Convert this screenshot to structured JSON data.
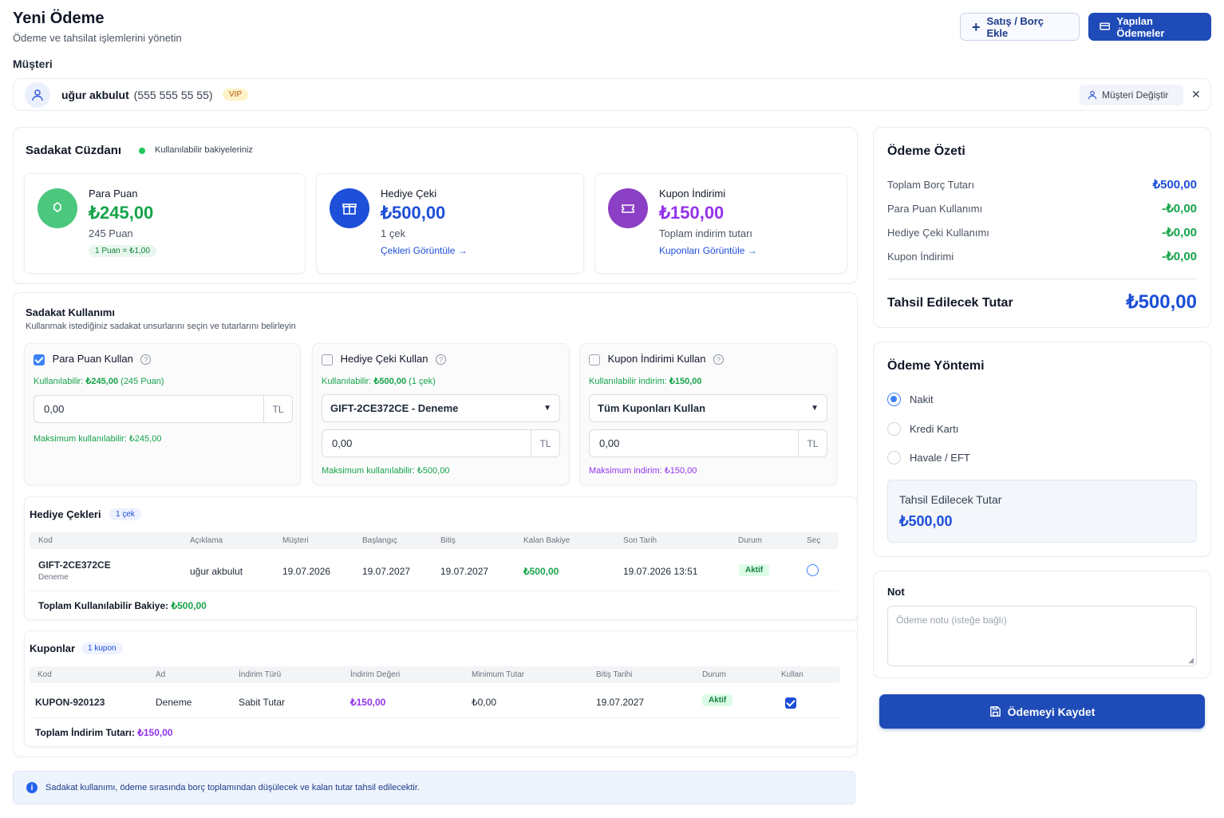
{
  "header": {
    "title": "Yeni Ödeme",
    "subtitle": "Ödeme ve tahsilat işlemlerini yönetin",
    "add_sale_label": "Satış / Borç Ekle",
    "payments_label": "Yapılan Ödemeler"
  },
  "customer": {
    "section_label": "Müşteri",
    "name": "uğur akbulut",
    "phone": "(555 555 55 55)",
    "badge": "VIP",
    "change_label": "Müşteri Değiştir",
    "clear_symbol": "✕"
  },
  "wallet": {
    "title": "Sadakat Cüzdanı",
    "status": "Kullanılabilir bakiyeleriniz",
    "cards": {
      "points": {
        "label": "Para Puan",
        "amount": "₺245,00",
        "sub": "245 Puan",
        "rate": "1 Puan = ₺1,00"
      },
      "gift": {
        "label": "Hediye Çeki",
        "amount": "₺500,00",
        "sub": "1 çek",
        "link": "Çekleri Görüntüle →"
      },
      "coupon": {
        "label": "Kupon İndirimi",
        "amount": "₺150,00",
        "sub": "Toplam indirim tutarı",
        "link": "Kuponları Görüntüle →"
      }
    }
  },
  "usage": {
    "title": "Sadakat Kullanımı",
    "subtitle": "Kullanmak istediğiniz sadakat unsurlarını seçin ve tutarlarını belirleyin",
    "points": {
      "checkbox_label": "Para Puan Kullan",
      "available_prefix": "Kullanılabilir:",
      "available_value": "₺245,00",
      "available_extra": "(245 Puan)",
      "input_value": "0,00",
      "unit": "TL",
      "max_text": "Maksimum kullanılabilir: ₺245,00"
    },
    "gift": {
      "checkbox_label": "Hediye Çeki Kullan",
      "available_prefix": "Kullanılabilir:",
      "available_value": "₺500,00",
      "available_extra": "(1 çek)",
      "select_value": "GIFT-2CE372CE - Deneme",
      "input_value": "0,00",
      "unit": "TL",
      "max_text": "Maksimum kullanılabilir: ₺500,00"
    },
    "coupon": {
      "checkbox_label": "Kupon İndirimi Kullan",
      "available_prefix": "Kullanılabilir indirim:",
      "available_value": "₺150,00",
      "select_value": "Tüm Kuponları Kullan",
      "input_value": "0,00",
      "unit": "TL",
      "max_text": "Maksimum indirim: ₺150,00"
    }
  },
  "gift_table": {
    "title": "Hediye Çekleri",
    "count": "1 çek",
    "columns": [
      "Kod",
      "Açıklama",
      "Müşteri",
      "Başlangıç",
      "Bitiş",
      "Kalan Bakiye",
      "Son Tarih",
      "Durum",
      "Seç"
    ],
    "row": {
      "code": "GIFT-2CE372CE",
      "code_sub": "Deneme",
      "customer": "uğur akbulut",
      "start": "19.07.2026",
      "end1": "19.07.2027",
      "end2": "19.07.2027",
      "balance": "₺500,00",
      "last": "19.07.2026 13:51",
      "status": "Aktif"
    },
    "footer_label": "Toplam Kullanılabilir Bakiye:",
    "footer_value": "₺500,00"
  },
  "coupon_table": {
    "title": "Kuponlar",
    "count": "1 kupon",
    "columns": [
      "Kod",
      "Ad",
      "İndirim Türü",
      "İndirim Değeri",
      "Minimum Tutar",
      "Bitiş Tarihi",
      "Durum",
      "Kullan"
    ],
    "row": {
      "code": "KUPON-920123",
      "name": "Deneme",
      "type": "Sabit Tutar",
      "value": "₺150,00",
      "minimum": "₺0,00",
      "end": "19.07.2027",
      "status": "Aktif"
    },
    "footer_label": "Toplam İndirim Tutarı:",
    "footer_value": "₺150,00"
  },
  "info_note": "Sadakat kullanımı, ödeme sırasında borç toplamından düşülecek ve kalan tutar tahsil edilecektir.",
  "summary": {
    "title": "Ödeme Özeti",
    "rows": [
      {
        "label": "Toplam Borç Tutarı",
        "value": "₺500,00"
      },
      {
        "label": "Para Puan Kullanımı",
        "value": "-₺0,00"
      },
      {
        "label": "Hediye Çeki Kullanımı",
        "value": "-₺0,00"
      },
      {
        "label": "Kupon İndirimi",
        "value": "-₺0,00"
      }
    ],
    "total_label": "Tahsil Edilecek Tutar",
    "total_value": "₺500,00"
  },
  "method": {
    "title": "Ödeme Yöntemi",
    "options": [
      "Nakit",
      "Kredi Kartı",
      "Havale / EFT"
    ],
    "selected": "Nakit",
    "due_label": "Tahsil Edilecek Tutar",
    "due_value": "₺500,00"
  },
  "note": {
    "label": "Not",
    "placeholder": "Ödeme notu (isteğe bağlı)"
  },
  "save_label": "Ödemeyi Kaydet",
  "colors": {
    "primary": "#1d4ed8",
    "green": "#16a34a",
    "purple": "#9333ea",
    "blue_icon": "#1d4ed8",
    "green_icon": "#3fbf6e",
    "purple_icon": "#8b3fc4"
  }
}
